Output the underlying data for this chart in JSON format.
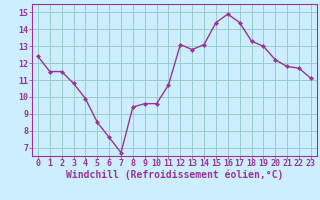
{
  "x": [
    0,
    1,
    2,
    3,
    4,
    5,
    6,
    7,
    8,
    9,
    10,
    11,
    12,
    13,
    14,
    15,
    16,
    17,
    18,
    19,
    20,
    21,
    22,
    23
  ],
  "y": [
    12.4,
    11.5,
    11.5,
    10.8,
    9.9,
    8.5,
    7.6,
    6.7,
    9.4,
    9.6,
    9.6,
    10.7,
    13.1,
    12.8,
    13.1,
    14.4,
    14.9,
    14.4,
    13.3,
    13.0,
    12.2,
    11.8,
    11.7,
    11.1
  ],
  "line_color": "#993399",
  "marker_color": "#993399",
  "bg_color": "#cceeff",
  "grid_color": "#99cccc",
  "xlabel": "Windchill (Refroidissement éolien,°C)",
  "xlabel_color": "#993399",
  "ylim": [
    6.5,
    15.5
  ],
  "xlim": [
    -0.5,
    23.5
  ],
  "yticks": [
    7,
    8,
    9,
    10,
    11,
    12,
    13,
    14,
    15
  ],
  "xticks": [
    0,
    1,
    2,
    3,
    4,
    5,
    6,
    7,
    8,
    9,
    10,
    11,
    12,
    13,
    14,
    15,
    16,
    17,
    18,
    19,
    20,
    21,
    22,
    23
  ],
  "tick_color": "#993399",
  "tick_label_fontsize": 6.0,
  "xlabel_fontsize": 7.0,
  "spine_color": "#993399",
  "marker_size": 2.5,
  "line_width": 1.0
}
